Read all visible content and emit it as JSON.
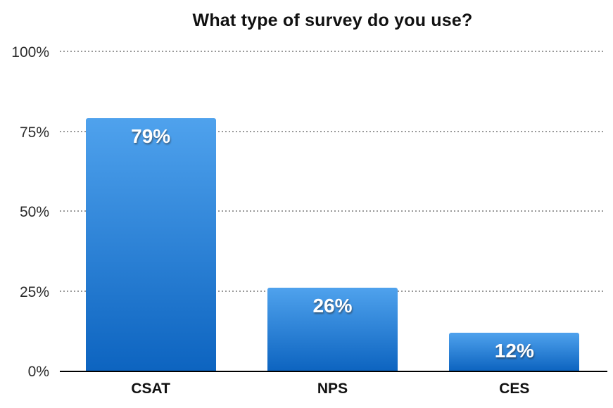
{
  "chart_data": {
    "type": "bar",
    "title": "What type of survey do you use?",
    "categories": [
      "CSAT",
      "NPS",
      "CES"
    ],
    "values": [
      79,
      26,
      12
    ],
    "value_labels": [
      "79%",
      "26%",
      "12%"
    ],
    "xlabel": "",
    "ylabel": "",
    "ylim": [
      0,
      100
    ],
    "yticks": [
      {
        "value": 0,
        "label": "0%"
      },
      {
        "value": 25,
        "label": "25%"
      },
      {
        "value": 50,
        "label": "50%"
      },
      {
        "value": 75,
        "label": "75%"
      },
      {
        "value": 100,
        "label": "100%"
      }
    ],
    "grid": "horizontal dotted, baseline solid",
    "legend": "none",
    "colors": {
      "bar_gradient_top": "#4fa2ed",
      "bar_gradient_bottom": "#0d64c0",
      "gridline": "#999999",
      "axis_line": "#000000",
      "tick_label": "#2b2b2b",
      "category_label": "#111111",
      "value_label": "#ffffff",
      "title": "#111111",
      "background": "#ffffff"
    }
  }
}
